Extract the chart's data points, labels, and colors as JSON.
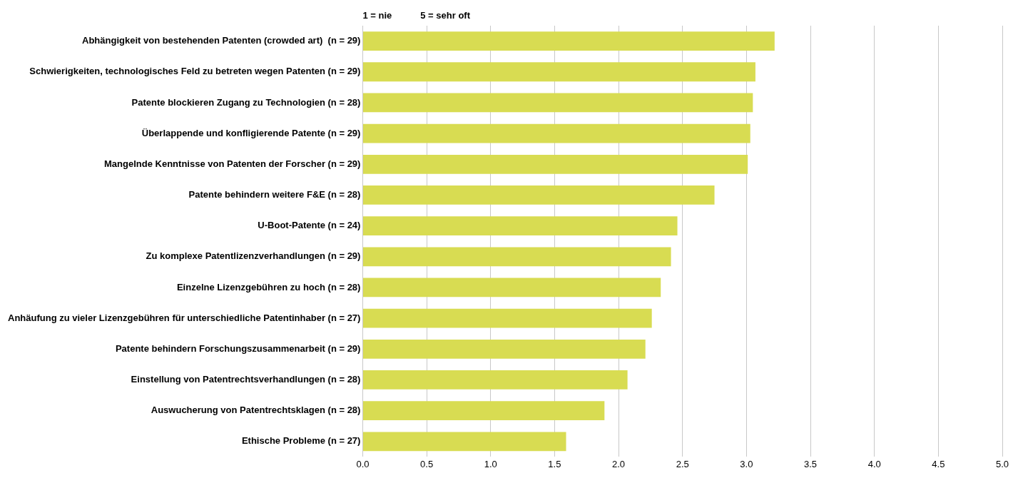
{
  "chart_data": {
    "type": "bar",
    "orientation": "horizontal",
    "categories": [
      "Abhängigkeit von bestehenden Patenten (crowded art)  (n = 29)",
      "Schwierigkeiten, technologisches Feld zu betreten wegen Patenten (n = 29)",
      "Patente blockieren Zugang zu Technologien (n = 28)",
      "Überlappende und konfligierende Patente (n = 29)",
      "Mangelnde Kenntnisse von Patenten der Forscher (n = 29)",
      "Patente behindern weitere F&E (n = 28)",
      "U-Boot-Patente (n = 24)",
      "Zu komplexe Patentlizenzverhandlungen (n = 29)",
      "Einzelne Lizenzgebühren zu hoch (n = 28)",
      "Anhäufung zu vieler Lizenzgebühren für unterschiedliche Patentinhaber (n = 27)",
      "Patente behindern Forschungszusammenarbeit (n = 29)",
      "Einstellung von Patentrechtsverhandlungen (n = 28)",
      "Auswucherung von Patentrechtsklagen (n = 28)",
      "Ethische Probleme (n = 27)"
    ],
    "values": [
      3.22,
      3.07,
      3.05,
      3.03,
      3.01,
      2.75,
      2.46,
      2.41,
      2.33,
      2.26,
      2.21,
      2.07,
      1.89,
      1.59
    ],
    "color": "#d8dc52",
    "xlim": [
      0,
      5
    ],
    "xticks": [
      {
        "value": 0,
        "label": "0.0"
      },
      {
        "value": 0.5,
        "label": "0.5"
      },
      {
        "value": 1,
        "label": "1.0"
      },
      {
        "value": 1.5,
        "label": "1.5"
      },
      {
        "value": 2,
        "label": "2.0"
      },
      {
        "value": 2.5,
        "label": "2.5"
      },
      {
        "value": 3,
        "label": "3.0"
      },
      {
        "value": 3.5,
        "label": "3.5"
      },
      {
        "value": 4,
        "label": "4.0"
      },
      {
        "value": 4.5,
        "label": "4.5"
      },
      {
        "value": 5,
        "label": "5.0"
      }
    ],
    "grid": "x",
    "annotations": [
      "1 = nie",
      "5 = sehr oft"
    ]
  }
}
